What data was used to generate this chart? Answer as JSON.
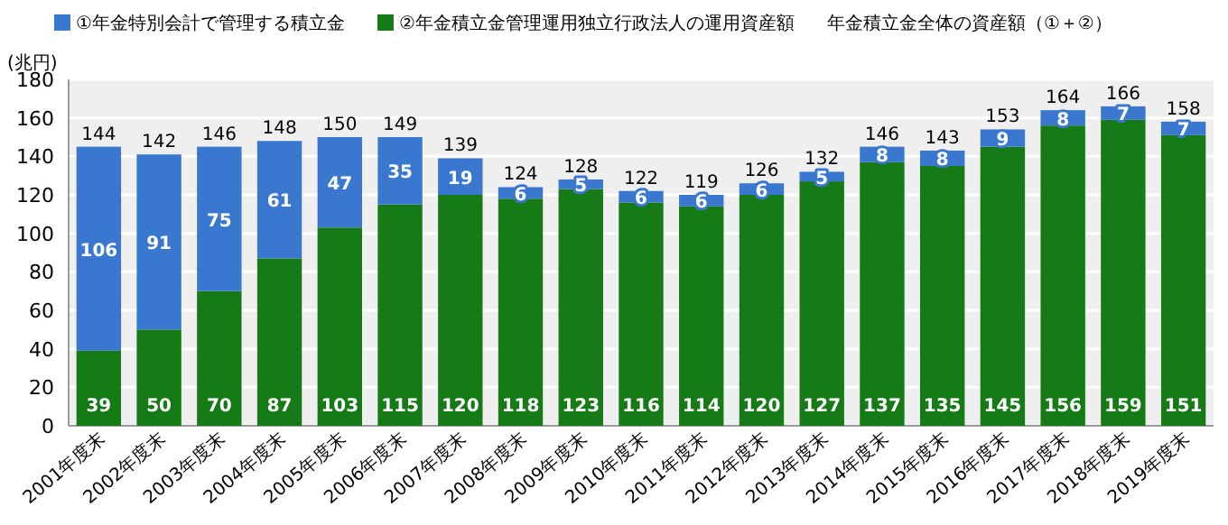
{
  "chart_data": {
    "type": "bar",
    "stacked": true,
    "ylabel": "(兆円)",
    "legend": "top",
    "grid": "y",
    "data_labels": true,
    "categories": [
      "2001年度末",
      "2002年度末",
      "2003年度末",
      "2004年度末",
      "2005年度末",
      "2006年度末",
      "2007年度末",
      "2008年度末",
      "2009年度末",
      "2010年度末",
      "2011年度末",
      "2012年度末",
      "2013年度末",
      "2014年度末",
      "2015年度末",
      "2016年度末",
      "2017年度末",
      "2018年度末",
      "2019年度末"
    ],
    "series": [
      {
        "name": "②年金積立金管理運用独立行政法人の運用資産額",
        "color": "#167a16",
        "values": [
          39,
          50,
          70,
          87,
          103,
          115,
          120,
          118,
          123,
          116,
          114,
          120,
          127,
          137,
          135,
          145,
          156,
          159,
          151
        ]
      },
      {
        "name": "①年金特別会計で管理する積立金",
        "color": "#3a78d0",
        "values": [
          106,
          91,
          75,
          61,
          47,
          35,
          19,
          6,
          5,
          6,
          6,
          6,
          5,
          8,
          8,
          9,
          8,
          7,
          7
        ]
      }
    ],
    "totals": [
      "144",
      "142",
      "146",
      "148",
      "150",
      "149",
      "139",
      "124",
      "128",
      "122",
      "119",
      "126",
      "132",
      "146",
      "143",
      "153",
      "164",
      "166",
      "158"
    ],
    "annotations": [
      "年金積立金全体の資産額（①＋②）"
    ],
    "ylim": [
      0,
      180
    ],
    "yticks": [
      0,
      20,
      40,
      60,
      80,
      100,
      120,
      140,
      160,
      180
    ]
  }
}
